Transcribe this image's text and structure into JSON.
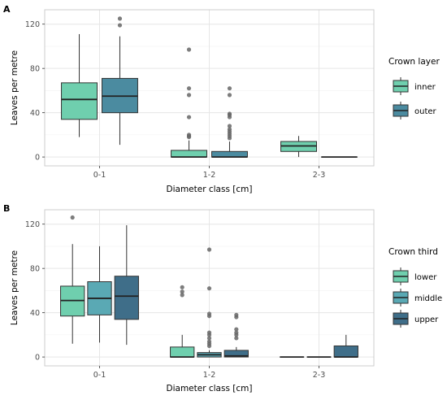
{
  "chart_data": [
    {
      "panel": "A",
      "type": "box",
      "xlabel": "Diameter class [cm]",
      "ylabel": "Leaves per metre",
      "ylim": [
        -8,
        133
      ],
      "yticks": [
        0,
        40,
        80,
        120
      ],
      "categories": [
        "0-1",
        "1-2",
        "2-3"
      ],
      "legend": {
        "title": "Crown layer",
        "position": "right"
      },
      "grid": true,
      "series": [
        {
          "name": "inner",
          "color": "#6fcfae",
          "boxes": [
            {
              "category": "0-1",
              "lower_whisker": 18,
              "q1": 34,
              "median": 52,
              "q3": 67,
              "upper_whisker": 111,
              "outliers": []
            },
            {
              "category": "1-2",
              "lower_whisker": 0,
              "q1": 0,
              "median": 0,
              "q3": 6,
              "upper_whisker": 15,
              "outliers": [
                18,
                19,
                20,
                36,
                56,
                62,
                97
              ]
            },
            {
              "category": "2-3",
              "lower_whisker": 0,
              "q1": 5,
              "median": 10,
              "q3": 14,
              "upper_whisker": 19,
              "outliers": []
            }
          ]
        },
        {
          "name": "outer",
          "color": "#4b8ba0",
          "boxes": [
            {
              "category": "0-1",
              "lower_whisker": 11,
              "q1": 40,
              "median": 55,
              "q3": 71,
              "upper_whisker": 109,
              "outliers": [
                119,
                125
              ]
            },
            {
              "category": "1-2",
              "lower_whisker": 0,
              "q1": 0,
              "median": 0,
              "q3": 5,
              "upper_whisker": 14,
              "outliers": [
                17,
                19,
                21,
                23,
                25,
                28,
                36,
                38,
                39,
                56,
                62
              ]
            },
            {
              "category": "2-3",
              "lower_whisker": 0,
              "q1": 0,
              "median": 0,
              "q3": 0,
              "upper_whisker": 0,
              "outliers": []
            }
          ]
        }
      ]
    },
    {
      "panel": "B",
      "type": "box",
      "xlabel": "Diameter class [cm]",
      "ylabel": "Leaves per metre",
      "ylim": [
        -8,
        133
      ],
      "yticks": [
        0,
        40,
        80,
        120
      ],
      "categories": [
        "0-1",
        "1-2",
        "2-3"
      ],
      "legend": {
        "title": "Crown third",
        "position": "right"
      },
      "grid": true,
      "series": [
        {
          "name": "lower",
          "color": "#6fcfae",
          "boxes": [
            {
              "category": "0-1",
              "lower_whisker": 12,
              "q1": 37,
              "median": 51,
              "q3": 64,
              "upper_whisker": 102,
              "outliers": [
                126
              ]
            },
            {
              "category": "1-2",
              "lower_whisker": 0,
              "q1": 0,
              "median": 0,
              "q3": 9,
              "upper_whisker": 20,
              "outliers": [
                56,
                59,
                63
              ]
            },
            {
              "category": "2-3",
              "lower_whisker": 0,
              "q1": 0,
              "median": 0,
              "q3": 0,
              "upper_whisker": 0,
              "outliers": []
            }
          ]
        },
        {
          "name": "middle",
          "color": "#5aa9b4",
          "boxes": [
            {
              "category": "0-1",
              "lower_whisker": 13,
              "q1": 38,
              "median": 53,
              "q3": 68,
              "upper_whisker": 100,
              "outliers": []
            },
            {
              "category": "1-2",
              "lower_whisker": 0,
              "q1": 0,
              "median": 2,
              "q3": 4,
              "upper_whisker": 6,
              "outliers": [
                10,
                12,
                14,
                17,
                20,
                22,
                37,
                39,
                62,
                97
              ]
            },
            {
              "category": "2-3",
              "lower_whisker": 0,
              "q1": 0,
              "median": 0,
              "q3": 0,
              "upper_whisker": 0,
              "outliers": []
            }
          ]
        },
        {
          "name": "upper",
          "color": "#3f6e89",
          "boxes": [
            {
              "category": "0-1",
              "lower_whisker": 11,
              "q1": 34,
              "median": 55,
              "q3": 73,
              "upper_whisker": 119,
              "outliers": []
            },
            {
              "category": "1-2",
              "lower_whisker": 0,
              "q1": 0,
              "median": 1,
              "q3": 6,
              "upper_whisker": 9,
              "outliers": [
                17,
                20,
                22,
                25,
                36,
                38
              ]
            },
            {
              "category": "2-3",
              "lower_whisker": 0,
              "q1": 0,
              "median": 0,
              "q3": 10,
              "upper_whisker": 20,
              "outliers": []
            }
          ]
        }
      ]
    }
  ]
}
